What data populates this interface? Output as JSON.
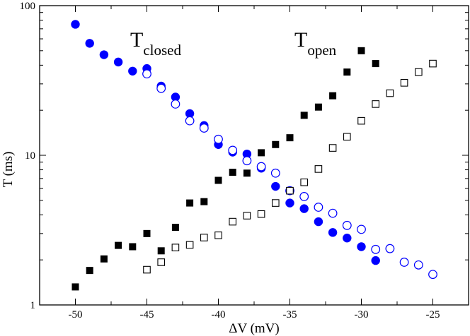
{
  "chart_data": {
    "type": "scatter",
    "title": "",
    "xlabel": "ΔV  (mV)",
    "ylabel": "T (ms)",
    "xlim": [
      -52.5,
      -22.5
    ],
    "ylim": [
      1,
      100
    ],
    "yscale": "log",
    "x_ticks": [
      -50,
      -45,
      -40,
      -35,
      -30,
      -25
    ],
    "x_tick_labels": [
      "-50",
      "-45",
      "-40",
      "-35",
      "-30",
      "-25"
    ],
    "y_ticks": [
      1,
      10,
      100
    ],
    "y_tick_labels": [
      "1",
      "10",
      "100"
    ],
    "grid": false,
    "annotations": [
      {
        "main": "T",
        "sub": "closed",
        "near": "upper-left, above closed-state curves"
      },
      {
        "main": "T",
        "sub": "open",
        "near": "upper-middle, above open-state curves"
      }
    ],
    "series": [
      {
        "name": "T_closed (filled circles)",
        "marker": "circle",
        "filled": true,
        "color": "#0000ff",
        "x": [
          -50,
          -49,
          -48,
          -47,
          -46,
          -45,
          -44,
          -43,
          -42,
          -41,
          -40,
          -39,
          -38,
          -37,
          -36,
          -35,
          -34,
          -33,
          -32,
          -31,
          -30,
          -29
        ],
        "y": [
          75,
          56,
          47,
          42,
          36.5,
          38,
          29,
          24.5,
          19,
          15.8,
          11.8,
          10.5,
          10.2,
          8.2,
          6.2,
          4.8,
          4.4,
          3.6,
          3.05,
          2.8,
          2.45,
          1.98
        ]
      },
      {
        "name": "T_closed (open circles)",
        "marker": "circle",
        "filled": false,
        "color": "#0000ff",
        "x": [
          -45,
          -44,
          -43,
          -42,
          -41,
          -40,
          -39,
          -38,
          -37,
          -36,
          -35,
          -34,
          -33,
          -32,
          -31,
          -30,
          -29,
          -28,
          -27,
          -26,
          -25
        ],
        "y": [
          35,
          28,
          22,
          17,
          15.2,
          12.8,
          10.8,
          9.2,
          8.4,
          7.6,
          5.8,
          5.3,
          4.5,
          4.1,
          3.4,
          3.2,
          2.35,
          2.38,
          1.93,
          1.85,
          1.6
        ]
      },
      {
        "name": "T_open (filled squares)",
        "marker": "square",
        "filled": true,
        "color": "#000000",
        "x": [
          -50,
          -49,
          -48,
          -47,
          -46,
          -45,
          -44,
          -43,
          -42,
          -41,
          -40,
          -39,
          -38,
          -37,
          -36,
          -35,
          -34,
          -33,
          -32,
          -31,
          -30,
          -29
        ],
        "y": [
          1.32,
          1.7,
          2.03,
          2.5,
          2.45,
          3.0,
          2.3,
          3.3,
          4.8,
          4.9,
          6.8,
          7.7,
          7.6,
          10.4,
          11.8,
          13.1,
          18.5,
          21,
          25,
          36,
          50,
          41
        ]
      },
      {
        "name": "T_open (open squares)",
        "marker": "square",
        "filled": false,
        "color": "#000000",
        "x": [
          -45,
          -44,
          -43,
          -42,
          -41,
          -40,
          -39,
          -38,
          -37,
          -36,
          -35,
          -34,
          -33,
          -32,
          -31,
          -30,
          -29,
          -28,
          -27,
          -26,
          -25
        ],
        "y": [
          1.72,
          1.93,
          2.42,
          2.52,
          2.82,
          2.92,
          3.6,
          3.95,
          4.05,
          4.8,
          5.8,
          6.6,
          8.1,
          11.2,
          13.3,
          17.0,
          22.0,
          26.0,
          30.5,
          36.0,
          41.0
        ]
      }
    ]
  }
}
